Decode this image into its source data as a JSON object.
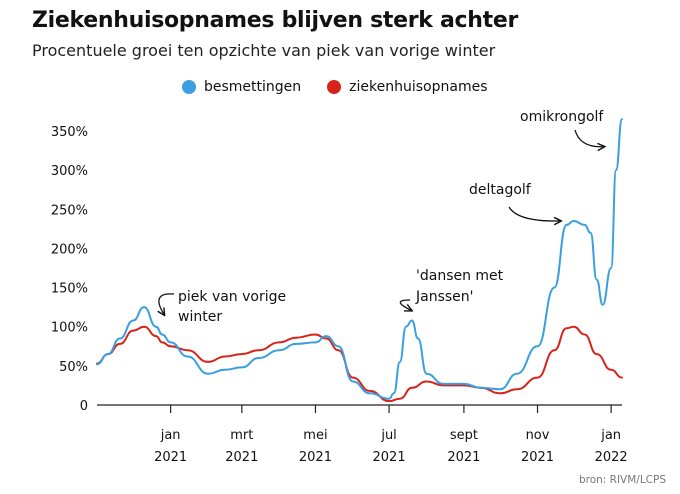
{
  "header": {
    "title": "Ziekenhuisopnames blijven sterk achter",
    "subtitle": "Procentuele groei ten opzichte van piek van vorige winter"
  },
  "source": "bron: RIVM/LCPS",
  "colors": {
    "besmettingen": "#3a9fe0",
    "ziekenhuisopnames": "#d8231b"
  },
  "chart_data": {
    "type": "line",
    "title": "Ziekenhuisopnames blijven sterk achter",
    "subtitle": "Procentuele groei ten opzichte van piek van vorige winter",
    "y_ticks": [
      "350%",
      "300%",
      "250%",
      "200%",
      "150%",
      "100%",
      "50%",
      "0"
    ],
    "y_unit": "%",
    "ylim": [
      0,
      370
    ],
    "x_ticks": [
      {
        "month": "jan",
        "year": "2021",
        "x": "2021-01-01"
      },
      {
        "month": "mrt",
        "year": "2021",
        "x": "2021-03-01"
      },
      {
        "month": "mei",
        "year": "2021",
        "x": "2021-05-01"
      },
      {
        "month": "jul",
        "year": "2021",
        "x": "2021-07-01"
      },
      {
        "month": "sept",
        "year": "2021",
        "x": "2021-09-01"
      },
      {
        "month": "nov",
        "year": "2021",
        "x": "2021-11-01"
      },
      {
        "month": "jan",
        "year": "2022",
        "x": "2022-01-01"
      }
    ],
    "xlim": [
      "2020-11-01",
      "2022-01-10"
    ],
    "legend": "top",
    "grid": "none",
    "series": [
      {
        "name": "besmettingen",
        "x": [
          "2020-11-01",
          "2020-11-10",
          "2020-11-20",
          "2020-12-01",
          "2020-12-10",
          "2020-12-20",
          "2020-12-25",
          "2021-01-01",
          "2021-01-15",
          "2021-02-01",
          "2021-02-15",
          "2021-03-01",
          "2021-03-15",
          "2021-04-01",
          "2021-04-15",
          "2021-05-01",
          "2021-05-10",
          "2021-05-20",
          "2021-06-01",
          "2021-06-15",
          "2021-07-01",
          "2021-07-05",
          "2021-07-10",
          "2021-07-15",
          "2021-07-20",
          "2021-07-25",
          "2021-08-01",
          "2021-08-15",
          "2021-09-01",
          "2021-09-15",
          "2021-10-01",
          "2021-10-15",
          "2021-11-01",
          "2021-11-15",
          "2021-11-25",
          "2021-12-01",
          "2021-12-10",
          "2021-12-15",
          "2021-12-20",
          "2021-12-25",
          "2022-01-01",
          "2022-01-05",
          "2022-01-10"
        ],
        "values": [
          52,
          65,
          85,
          108,
          125,
          100,
          90,
          80,
          62,
          40,
          45,
          48,
          60,
          70,
          78,
          80,
          88,
          75,
          30,
          15,
          8,
          15,
          55,
          100,
          108,
          85,
          40,
          27,
          27,
          22,
          20,
          40,
          75,
          150,
          230,
          235,
          230,
          220,
          160,
          128,
          175,
          300,
          365
        ]
      },
      {
        "name": "ziekenhuisopnames",
        "x": [
          "2020-11-01",
          "2020-11-10",
          "2020-11-20",
          "2020-12-01",
          "2020-12-10",
          "2020-12-20",
          "2020-12-25",
          "2021-01-01",
          "2021-01-15",
          "2021-02-01",
          "2021-02-15",
          "2021-03-01",
          "2021-03-15",
          "2021-04-01",
          "2021-04-15",
          "2021-05-01",
          "2021-05-10",
          "2021-05-20",
          "2021-06-01",
          "2021-06-15",
          "2021-07-01",
          "2021-07-10",
          "2021-07-20",
          "2021-08-01",
          "2021-08-15",
          "2021-09-01",
          "2021-09-15",
          "2021-10-01",
          "2021-10-15",
          "2021-11-01",
          "2021-11-15",
          "2021-11-25",
          "2021-12-01",
          "2021-12-10",
          "2021-12-20",
          "2022-01-01",
          "2022-01-10"
        ],
        "values": [
          53,
          65,
          78,
          95,
          100,
          88,
          80,
          75,
          70,
          55,
          62,
          65,
          70,
          80,
          86,
          90,
          85,
          70,
          35,
          18,
          5,
          8,
          22,
          30,
          25,
          25,
          22,
          15,
          20,
          35,
          70,
          98,
          100,
          90,
          65,
          45,
          35
        ]
      }
    ],
    "annotations": [
      {
        "text": [
          "piek van vorige",
          "winter"
        ],
        "x": "2020-12-20",
        "y": 100
      },
      {
        "text": [
          "'dansen met",
          "Janssen'"
        ],
        "x": "2021-07-17",
        "y": 108
      },
      {
        "text": [
          "deltagolf"
        ],
        "x": "2021-11-25",
        "y": 230
      },
      {
        "text": [
          "omikrongolf"
        ],
        "x": "2022-01-05",
        "y": 330
      }
    ]
  }
}
